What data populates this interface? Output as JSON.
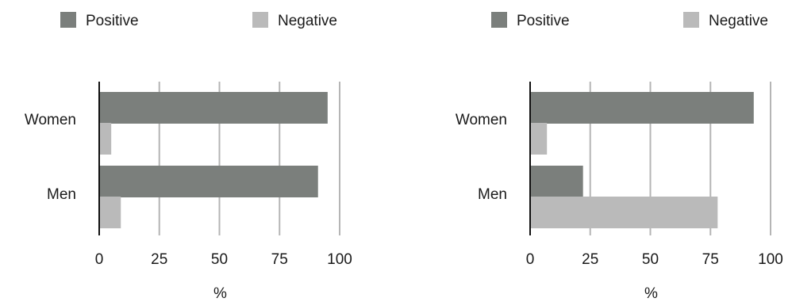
{
  "chart_data": [
    {
      "type": "bar",
      "orientation": "horizontal",
      "categories": [
        "Women",
        "Men"
      ],
      "series": [
        {
          "name": "Positive",
          "values": [
            95,
            91
          ]
        },
        {
          "name": "Negative",
          "values": [
            5,
            9
          ]
        }
      ],
      "xlabel": "%",
      "xlim": [
        0,
        100
      ],
      "xticks": [
        "0",
        "25",
        "50",
        "75",
        "100"
      ],
      "grid": "vertical",
      "legend": "top"
    },
    {
      "type": "bar",
      "orientation": "horizontal",
      "categories": [
        "Women",
        "Men"
      ],
      "series": [
        {
          "name": "Positive",
          "values": [
            93,
            22
          ]
        },
        {
          "name": "Negative",
          "values": [
            7,
            78
          ]
        }
      ],
      "xlabel": "%",
      "xlim": [
        0,
        100
      ],
      "xticks": [
        "0",
        "25",
        "50",
        "75",
        "100"
      ],
      "grid": "vertical",
      "legend": "top"
    }
  ],
  "colors": {
    "positive": "#7b7f7c",
    "negative": "#bababa",
    "grid": "#b5b5b5",
    "axis": "#111111"
  }
}
